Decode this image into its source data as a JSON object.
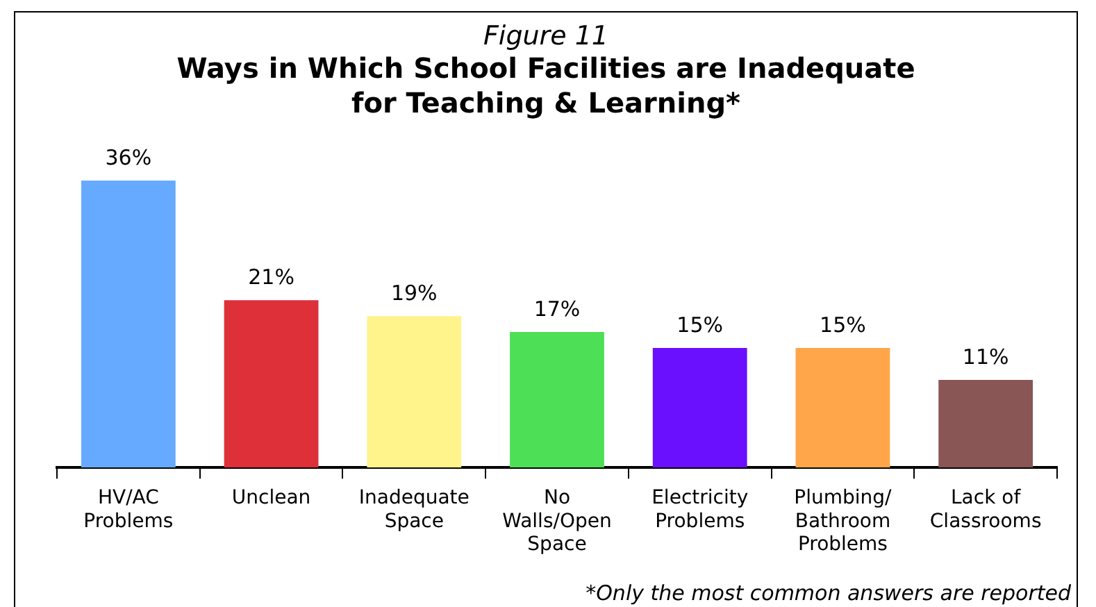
{
  "chart_data": {
    "type": "bar",
    "subtitle": "Figure 11",
    "title": "Ways in Which School Facilities are Inadequate for Teaching & Learning*",
    "categories": [
      "HV/AC Problems",
      "Unclean",
      "Inadequate Space",
      "No Walls/Open Space",
      "Electricity Problems",
      "Plumbing/ Bathroom Problems",
      "Lack of Classrooms"
    ],
    "values": [
      36,
      21,
      19,
      17,
      15,
      15,
      11
    ],
    "value_labels": [
      "36%",
      "21%",
      "19%",
      "17%",
      "15%",
      "15%",
      "11%"
    ],
    "colors": [
      "#66aaff",
      "#dd3039",
      "#fff38c",
      "#4ddf55",
      "#6a10ff",
      "#ffa64a",
      "#8a5555"
    ],
    "grid": false,
    "legend": false,
    "annotations": [
      "*Only the most common answers are reported"
    ]
  }
}
